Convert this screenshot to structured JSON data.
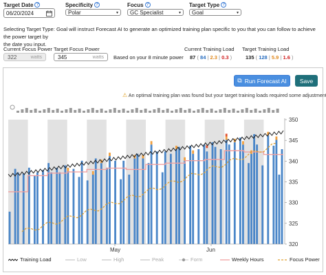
{
  "form": {
    "target_date_label": "Target Date",
    "target_date_value": "06/20/2024",
    "specificity_label": "Specificity",
    "specificity_value": "Polar",
    "focus_label": "Focus",
    "focus_value": "GC Specialist",
    "target_type_label": "Target Type",
    "target_type_value": "Goal",
    "help_glyph": "?"
  },
  "description": {
    "line1": "Selecting Target Type: Goal will instruct Forecast AI to generate an optimized training plan specific to you that you can follow to achieve the power target by",
    "line2": "the date you input."
  },
  "metrics": {
    "current_focus_power_label": "Current Focus Power",
    "current_focus_power_value": "322",
    "current_focus_power_unit": "watts",
    "target_focus_power_label": "Target Focus Power",
    "target_focus_power_value": "345",
    "target_focus_power_unit": "watts",
    "based_on": "Based on your 8 minute power",
    "current_training_load_label": "Current Training Load",
    "current_load_total": "87",
    "current_load_a": "84",
    "current_load_b": "2.3",
    "current_load_c": "0.3",
    "target_training_load_label": "Target Training Load",
    "target_load_total": "135",
    "target_load_a": "128",
    "target_load_b": "5.9",
    "target_load_c": "1.6"
  },
  "buttons": {
    "run_forecast": "Run Forecast AI",
    "save": "Save"
  },
  "warning": {
    "icon": "warning-icon",
    "text": "An optimal training plan was found but your target training loads required some adjustments."
  },
  "colors": {
    "bar": "#4a86c8",
    "training_load": "#222222",
    "weekly_hours": "#f0a0a0",
    "focus_power": "#e0a030",
    "peak_dot": "#f0a040",
    "high_dot": "#e05030",
    "gray_band": "#e2e2e2"
  },
  "chart_data": {
    "type": "bar",
    "x_tick_labels": [
      "May",
      "Jun"
    ],
    "y_right_ticks": [
      320,
      325,
      330,
      335,
      340,
      345,
      350
    ],
    "y_right_range": [
      320,
      350
    ],
    "legend": [
      {
        "name": "Training Load",
        "style": "zigzag-line",
        "color": "#222222"
      },
      {
        "name": "Low",
        "style": "line",
        "color": "#c8c8c8"
      },
      {
        "name": "High",
        "style": "line",
        "color": "#c8c8c8"
      },
      {
        "name": "Peak",
        "style": "line",
        "color": "#c8c8c8"
      },
      {
        "name": "Form",
        "style": "dot-line",
        "color": "#c8c8c8"
      },
      {
        "name": "Weekly Hours",
        "style": "line",
        "color": "#f0a0a0"
      },
      {
        "name": "Focus Power",
        "style": "dashed-line",
        "color": "#e0a030"
      }
    ],
    "bars_relative": [
      0.28,
      0,
      0.65,
      0.62,
      0,
      0.61,
      0,
      0.66,
      0,
      0.59,
      0.62,
      0,
      0.64,
      0,
      0.7,
      0.62,
      0,
      0.66,
      0.62,
      0,
      0.68,
      0.63,
      0,
      0.65,
      0,
      0.58,
      0.72,
      0,
      0.55,
      0,
      0.6,
      0.74,
      0,
      0.7,
      0,
      0.66,
      0.76,
      0,
      0.72,
      0,
      0.56,
      0.72,
      0,
      0.6,
      0,
      0.74,
      0.78,
      0,
      0.74,
      0,
      0.7,
      0.86,
      0,
      0.8,
      0,
      0.62,
      0.8,
      0,
      0.78,
      0,
      0.82,
      0.84,
      0,
      0.72,
      0,
      0.85,
      0.78,
      0,
      0.82,
      0,
      0.86,
      0.8,
      0,
      0.88,
      0.84,
      0,
      0.82,
      0,
      0.9,
      0.86,
      0,
      0.88,
      0,
      0.92,
      0.86,
      0,
      0.7,
      0.78,
      0.95,
      0.86,
      0,
      0.68,
      0,
      0.94,
      0,
      0.85,
      0.9,
      0.6,
      0.82
    ],
    "training_load_range": [
      0.55,
      0.9
    ],
    "weekly_hours_start": 0.42,
    "focus_power_start": 322,
    "focus_power_end": 345
  }
}
